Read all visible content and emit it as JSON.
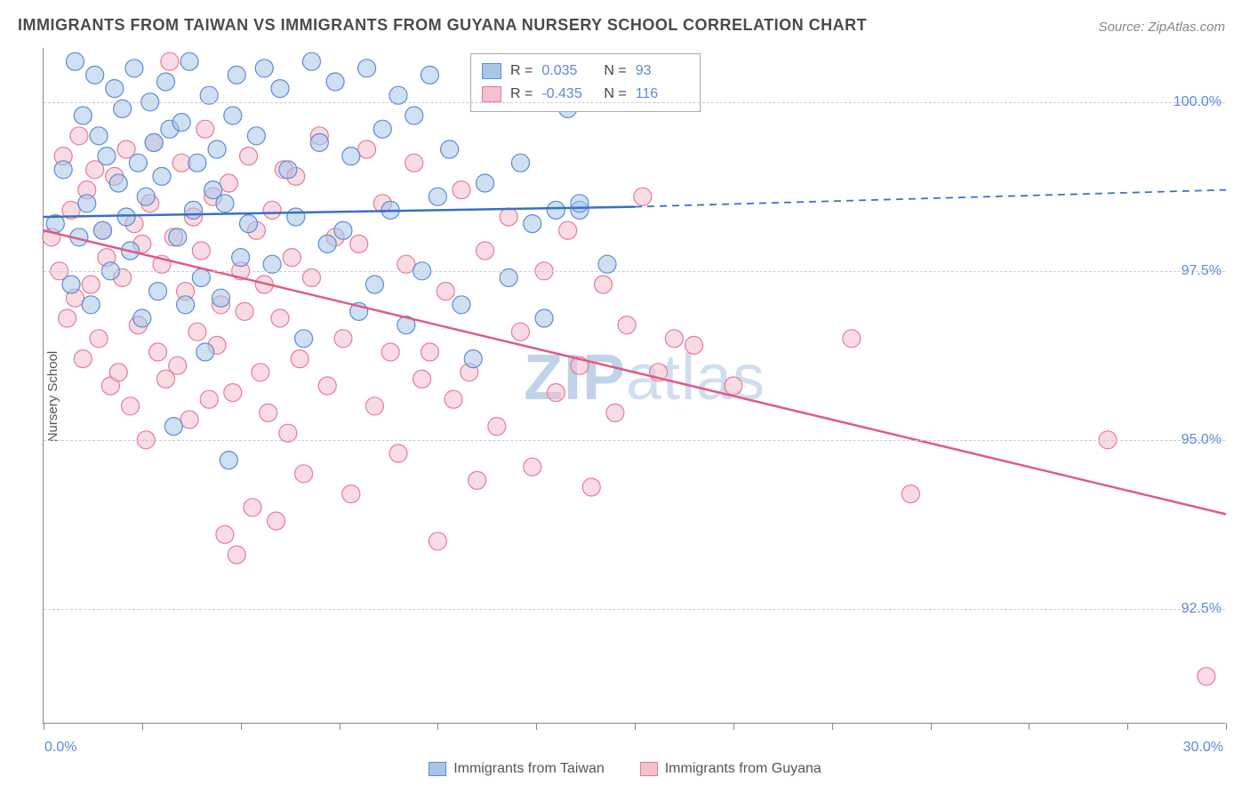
{
  "title": "IMMIGRANTS FROM TAIWAN VS IMMIGRANTS FROM GUYANA NURSERY SCHOOL CORRELATION CHART",
  "source": "Source: ZipAtlas.com",
  "ylabel": "Nursery School",
  "watermark": {
    "bold": "ZIP",
    "rest": "atlas"
  },
  "series": {
    "taiwan": {
      "label": "Immigrants from Taiwan",
      "R": "0.035",
      "N": "93",
      "color_fill": "#a8c6ea",
      "color_stroke": "#5b8bd4",
      "line_color": "#3a6fc4",
      "trend": {
        "y_at_x0": 98.3,
        "y_at_x15": 98.45,
        "y_at_x30": 98.7,
        "solid_until_x": 15
      },
      "points": [
        [
          0.3,
          98.2
        ],
        [
          0.5,
          99.0
        ],
        [
          0.7,
          97.3
        ],
        [
          0.8,
          100.6
        ],
        [
          0.9,
          98.0
        ],
        [
          1.0,
          99.8
        ],
        [
          1.1,
          98.5
        ],
        [
          1.2,
          97.0
        ],
        [
          1.3,
          100.4
        ],
        [
          1.4,
          99.5
        ],
        [
          1.5,
          98.1
        ],
        [
          1.6,
          99.2
        ],
        [
          1.7,
          97.5
        ],
        [
          1.8,
          100.2
        ],
        [
          1.9,
          98.8
        ],
        [
          2.0,
          99.9
        ],
        [
          2.1,
          98.3
        ],
        [
          2.2,
          97.8
        ],
        [
          2.3,
          100.5
        ],
        [
          2.4,
          99.1
        ],
        [
          2.5,
          96.8
        ],
        [
          2.6,
          98.6
        ],
        [
          2.7,
          100.0
        ],
        [
          2.8,
          99.4
        ],
        [
          2.9,
          97.2
        ],
        [
          3.0,
          98.9
        ],
        [
          3.1,
          100.3
        ],
        [
          3.2,
          99.6
        ],
        [
          3.3,
          95.2
        ],
        [
          3.4,
          98.0
        ],
        [
          3.5,
          99.7
        ],
        [
          3.6,
          97.0
        ],
        [
          3.7,
          100.6
        ],
        [
          3.8,
          98.4
        ],
        [
          3.9,
          99.1
        ],
        [
          4.0,
          97.4
        ],
        [
          4.1,
          96.3
        ],
        [
          4.2,
          100.1
        ],
        [
          4.3,
          98.7
        ],
        [
          4.4,
          99.3
        ],
        [
          4.5,
          97.1
        ],
        [
          4.6,
          98.5
        ],
        [
          4.7,
          94.7
        ],
        [
          4.8,
          99.8
        ],
        [
          4.9,
          100.4
        ],
        [
          5.0,
          97.7
        ],
        [
          5.2,
          98.2
        ],
        [
          5.4,
          99.5
        ],
        [
          5.6,
          100.5
        ],
        [
          5.8,
          97.6
        ],
        [
          6.0,
          100.2
        ],
        [
          6.2,
          99.0
        ],
        [
          6.4,
          98.3
        ],
        [
          6.6,
          96.5
        ],
        [
          6.8,
          100.6
        ],
        [
          7.0,
          99.4
        ],
        [
          7.2,
          97.9
        ],
        [
          7.4,
          100.3
        ],
        [
          7.6,
          98.1
        ],
        [
          7.8,
          99.2
        ],
        [
          8.0,
          96.9
        ],
        [
          8.2,
          100.5
        ],
        [
          8.4,
          97.3
        ],
        [
          8.6,
          99.6
        ],
        [
          8.8,
          98.4
        ],
        [
          9.0,
          100.1
        ],
        [
          9.2,
          96.7
        ],
        [
          9.4,
          99.8
        ],
        [
          9.6,
          97.5
        ],
        [
          9.8,
          100.4
        ],
        [
          10.0,
          98.6
        ],
        [
          10.3,
          99.3
        ],
        [
          10.6,
          97.0
        ],
        [
          10.9,
          96.2
        ],
        [
          11.2,
          98.8
        ],
        [
          11.5,
          100.0
        ],
        [
          11.8,
          97.4
        ],
        [
          12.1,
          99.1
        ],
        [
          12.4,
          98.2
        ],
        [
          12.7,
          96.8
        ],
        [
          13.0,
          98.4
        ],
        [
          13.3,
          99.9
        ],
        [
          13.6,
          98.4
        ],
        [
          13.6,
          98.5
        ],
        [
          14.0,
          100.2
        ],
        [
          14.3,
          97.6
        ]
      ]
    },
    "guyana": {
      "label": "Immigrants from Guyana",
      "R": "-0.435",
      "N": "116",
      "color_fill": "#f4c0cc",
      "color_stroke": "#e57a9a",
      "line_color": "#e05a85",
      "trend": {
        "y_at_x0": 98.1,
        "y_at_x30": 93.9
      },
      "points": [
        [
          0.2,
          98.0
        ],
        [
          0.4,
          97.5
        ],
        [
          0.5,
          99.2
        ],
        [
          0.6,
          96.8
        ],
        [
          0.7,
          98.4
        ],
        [
          0.8,
          97.1
        ],
        [
          0.9,
          99.5
        ],
        [
          1.0,
          96.2
        ],
        [
          1.1,
          98.7
        ],
        [
          1.2,
          97.3
        ],
        [
          1.3,
          99.0
        ],
        [
          1.4,
          96.5
        ],
        [
          1.5,
          98.1
        ],
        [
          1.6,
          97.7
        ],
        [
          1.7,
          95.8
        ],
        [
          1.8,
          98.9
        ],
        [
          1.9,
          96.0
        ],
        [
          2.0,
          97.4
        ],
        [
          2.1,
          99.3
        ],
        [
          2.2,
          95.5
        ],
        [
          2.3,
          98.2
        ],
        [
          2.4,
          96.7
        ],
        [
          2.5,
          97.9
        ],
        [
          2.6,
          95.0
        ],
        [
          2.7,
          98.5
        ],
        [
          2.8,
          99.4
        ],
        [
          2.9,
          96.3
        ],
        [
          3.0,
          97.6
        ],
        [
          3.1,
          95.9
        ],
        [
          3.2,
          100.6
        ],
        [
          3.3,
          98.0
        ],
        [
          3.4,
          96.1
        ],
        [
          3.5,
          99.1
        ],
        [
          3.6,
          97.2
        ],
        [
          3.7,
          95.3
        ],
        [
          3.8,
          98.3
        ],
        [
          3.9,
          96.6
        ],
        [
          4.0,
          97.8
        ],
        [
          4.1,
          99.6
        ],
        [
          4.2,
          95.6
        ],
        [
          4.3,
          98.6
        ],
        [
          4.4,
          96.4
        ],
        [
          4.5,
          97.0
        ],
        [
          4.6,
          93.6
        ],
        [
          4.7,
          98.8
        ],
        [
          4.8,
          95.7
        ],
        [
          4.9,
          93.3
        ],
        [
          5.0,
          97.5
        ],
        [
          5.1,
          96.9
        ],
        [
          5.2,
          99.2
        ],
        [
          5.3,
          94.0
        ],
        [
          5.4,
          98.1
        ],
        [
          5.5,
          96.0
        ],
        [
          5.6,
          97.3
        ],
        [
          5.7,
          95.4
        ],
        [
          5.8,
          98.4
        ],
        [
          5.9,
          93.8
        ],
        [
          6.0,
          96.8
        ],
        [
          6.1,
          99.0
        ],
        [
          6.2,
          95.1
        ],
        [
          6.3,
          97.7
        ],
        [
          6.4,
          98.9
        ],
        [
          6.5,
          96.2
        ],
        [
          6.6,
          94.5
        ],
        [
          6.8,
          97.4
        ],
        [
          7.0,
          99.5
        ],
        [
          7.2,
          95.8
        ],
        [
          7.4,
          98.0
        ],
        [
          7.6,
          96.5
        ],
        [
          7.8,
          94.2
        ],
        [
          8.0,
          97.9
        ],
        [
          8.2,
          99.3
        ],
        [
          8.4,
          95.5
        ],
        [
          8.6,
          98.5
        ],
        [
          8.8,
          96.3
        ],
        [
          9.0,
          94.8
        ],
        [
          9.2,
          97.6
        ],
        [
          9.4,
          99.1
        ],
        [
          9.6,
          95.9
        ],
        [
          9.8,
          96.3
        ],
        [
          10.0,
          93.5
        ],
        [
          10.2,
          97.2
        ],
        [
          10.4,
          95.6
        ],
        [
          10.6,
          98.7
        ],
        [
          10.8,
          96.0
        ],
        [
          11.0,
          94.4
        ],
        [
          11.2,
          97.8
        ],
        [
          11.5,
          95.2
        ],
        [
          11.8,
          98.3
        ],
        [
          12.1,
          96.6
        ],
        [
          12.4,
          94.6
        ],
        [
          12.7,
          97.5
        ],
        [
          13.0,
          95.7
        ],
        [
          13.3,
          98.1
        ],
        [
          13.6,
          96.1
        ],
        [
          13.9,
          94.3
        ],
        [
          14.2,
          97.3
        ],
        [
          14.5,
          95.4
        ],
        [
          14.8,
          96.7
        ],
        [
          15.2,
          98.6
        ],
        [
          15.6,
          96.0
        ],
        [
          16.0,
          96.5
        ],
        [
          16.5,
          96.4
        ],
        [
          17.5,
          95.8
        ],
        [
          20.5,
          96.5
        ],
        [
          22.0,
          94.2
        ],
        [
          27.0,
          95.0
        ],
        [
          29.5,
          91.5
        ]
      ]
    }
  },
  "axes": {
    "x": {
      "min": 0,
      "max": 30,
      "ticks_every": 2.5,
      "label_min": "0.0%",
      "label_max": "30.0%"
    },
    "y": {
      "min": 90.8,
      "max": 100.8,
      "gridlines": [
        92.5,
        95.0,
        97.5,
        100.0
      ],
      "grid_labels": [
        "92.5%",
        "95.0%",
        "97.5%",
        "100.0%"
      ]
    }
  },
  "legend_labels": {
    "R": "R  =",
    "N": "N  ="
  },
  "styling": {
    "marker_radius": 10,
    "marker_opacity": 0.55,
    "trend_line_width": 2.5,
    "plot_bg": "#ffffff",
    "grid_color": "#cccccc",
    "axis_color": "#888888",
    "title_color": "#4a4a4a",
    "tick_label_color": "#5b8bd4",
    "title_fontsize": 18,
    "label_fontsize": 15,
    "tick_fontsize": 16
  }
}
